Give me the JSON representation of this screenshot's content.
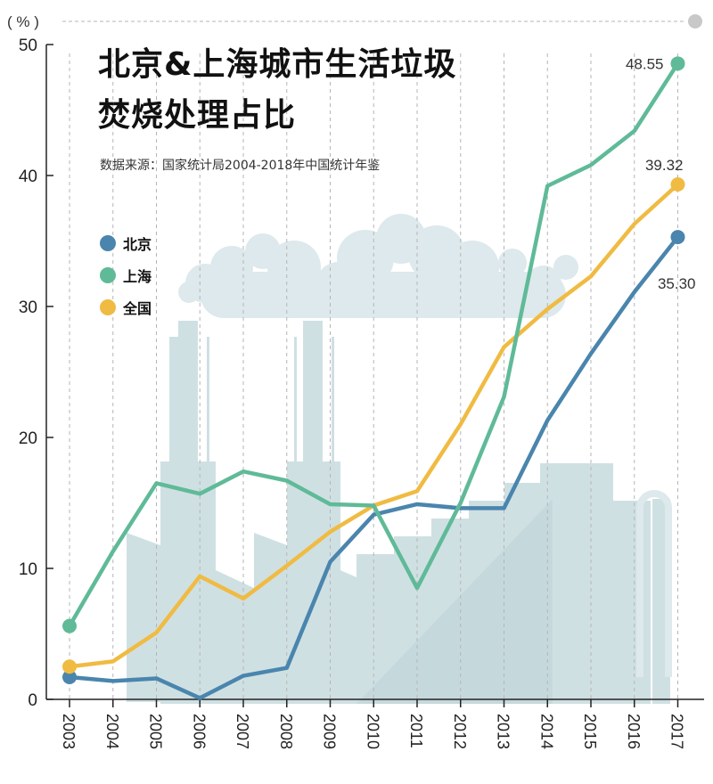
{
  "chart_data": {
    "type": "line",
    "title": [
      "北京&上海城市生活垃圾",
      "焚烧处理占比"
    ],
    "source": "数据来源：国家统计局2004-2018年中国统计年鉴",
    "unit_label": "( % )",
    "x": [
      "2003",
      "2004",
      "2005",
      "2006",
      "2007",
      "2008",
      "2009",
      "2010",
      "2011",
      "2012",
      "2013",
      "2014",
      "2015",
      "2016",
      "2017"
    ],
    "ylim": [
      0,
      50
    ],
    "yticks": [
      0,
      10,
      20,
      30,
      40,
      50
    ],
    "grid": "vertical dashed",
    "legend_position": "left",
    "series": [
      {
        "name": "北京",
        "color": "#4a85ad",
        "values": [
          1.7,
          1.4,
          1.6,
          0.1,
          1.8,
          2.4,
          10.5,
          14.1,
          14.9,
          14.6,
          14.6,
          21.3,
          26.4,
          31.1,
          35.3
        ]
      },
      {
        "name": "上海",
        "color": "#5fba98",
        "values": [
          5.6,
          11.3,
          16.5,
          15.7,
          17.4,
          16.7,
          14.9,
          14.8,
          8.5,
          15.0,
          23.1,
          39.2,
          40.8,
          43.4,
          48.55
        ]
      },
      {
        "name": "全国",
        "color": "#f0bb42",
        "values": [
          2.5,
          2.9,
          5.1,
          9.4,
          7.7,
          10.2,
          12.8,
          14.8,
          15.9,
          21.0,
          26.9,
          29.8,
          32.3,
          36.3,
          39.32
        ]
      }
    ],
    "end_labels": {
      "北京": "35.30",
      "上海": "48.55",
      "全国": "39.32"
    }
  }
}
